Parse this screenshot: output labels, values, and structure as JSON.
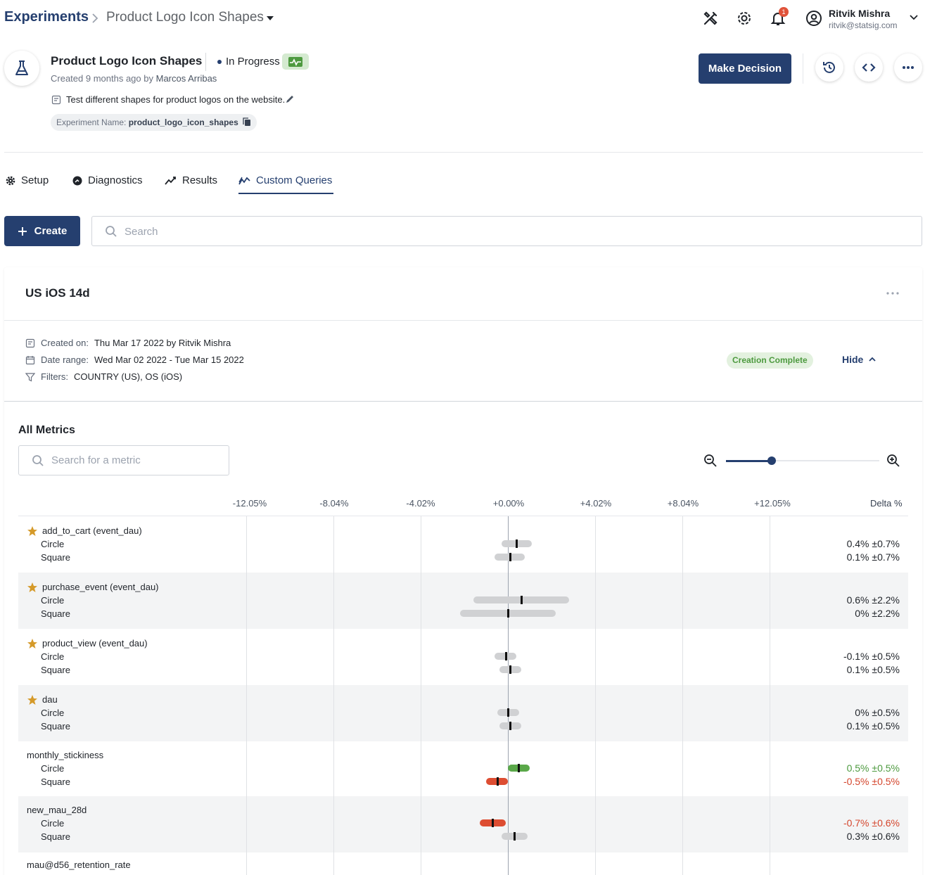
{
  "breadcrumb": {
    "root": "Experiments",
    "current": "Product Logo Icon Shapes"
  },
  "topbar": {
    "icons": [
      "tools-icon",
      "gear-icon",
      "bell-icon"
    ],
    "notification_count": "1",
    "user_name": "Ritvik Mishra",
    "user_email": "ritvik@statsig.com"
  },
  "experiment": {
    "title": "Product Logo Icon Shapes",
    "status": "In Progress",
    "created_prefix": "Created 9 months ago by",
    "created_by": "Marcos Arribas",
    "description": "Test different shapes for product logos on the website.",
    "name_label": "Experiment Name:",
    "name_value": "product_logo_icon_shapes",
    "decision_button": "Make Decision"
  },
  "tabs": [
    {
      "label": "Setup",
      "icon": "gear-icon"
    },
    {
      "label": "Diagnostics",
      "icon": "diagnostics-icon"
    },
    {
      "label": "Results",
      "icon": "chart-line-icon"
    },
    {
      "label": "Custom Queries",
      "icon": "query-chart-icon",
      "active": true
    }
  ],
  "toolbar": {
    "create_label": "Create",
    "search_placeholder": "Search"
  },
  "query": {
    "title": "US iOS 14d",
    "created_on_label": "Created on:",
    "created_on_value": "Thu Mar 17 2022 by Ritvik Mishra",
    "date_range_label": "Date range:",
    "date_range_value": "Wed Mar 02 2022 - Tue Mar 15 2022",
    "filters_label": "Filters:",
    "filters_value": "COUNTRY (US), OS (iOS)",
    "status_chip": "Creation Complete",
    "hide_label": "Hide"
  },
  "metrics_panel": {
    "title": "All Metrics",
    "search_placeholder": "Search for a metric",
    "zoom_level": 0.3,
    "axis_ticks": [
      "-12.05%",
      "-8.04%",
      "-4.02%",
      "+0.00%",
      "+4.02%",
      "+8.04%",
      "+12.05%"
    ],
    "delta_header": "Delta %"
  },
  "colors": {
    "brand": "#253f6f",
    "positive": "#5aa849",
    "negative": "#dd4d32",
    "neutral_ci": "#d0d1d3"
  },
  "metrics": [
    {
      "name": "add_to_cart (event_dau)",
      "starred": true,
      "variants": [
        {
          "label": "Circle",
          "delta": 0.4,
          "ci": 0.7,
          "text": "0.4% ±0.7%",
          "sig": "none"
        },
        {
          "label": "Square",
          "delta": 0.1,
          "ci": 0.7,
          "text": "0.1% ±0.7%",
          "sig": "none"
        }
      ]
    },
    {
      "name": "purchase_event (event_dau)",
      "starred": true,
      "variants": [
        {
          "label": "Circle",
          "delta": 0.6,
          "ci": 2.2,
          "text": "0.6% ±2.2%",
          "sig": "none"
        },
        {
          "label": "Square",
          "delta": 0.0,
          "ci": 2.2,
          "text": "0% ±2.2%",
          "sig": "none"
        }
      ]
    },
    {
      "name": "product_view (event_dau)",
      "starred": true,
      "variants": [
        {
          "label": "Circle",
          "delta": -0.1,
          "ci": 0.5,
          "text": "-0.1% ±0.5%",
          "sig": "none"
        },
        {
          "label": "Square",
          "delta": 0.1,
          "ci": 0.5,
          "text": "0.1% ±0.5%",
          "sig": "none"
        }
      ]
    },
    {
      "name": "dau",
      "starred": true,
      "variants": [
        {
          "label": "Circle",
          "delta": 0.0,
          "ci": 0.5,
          "text": "0% ±0.5%",
          "sig": "none"
        },
        {
          "label": "Square",
          "delta": 0.1,
          "ci": 0.5,
          "text": "0.1% ±0.5%",
          "sig": "none"
        }
      ]
    },
    {
      "name": "monthly_stickiness",
      "starred": false,
      "variants": [
        {
          "label": "Circle",
          "delta": 0.5,
          "ci": 0.5,
          "text": "0.5% ±0.5%",
          "sig": "pos"
        },
        {
          "label": "Square",
          "delta": -0.5,
          "ci": 0.5,
          "text": "-0.5% ±0.5%",
          "sig": "neg"
        }
      ]
    },
    {
      "name": "new_mau_28d",
      "starred": false,
      "variants": [
        {
          "label": "Circle",
          "delta": -0.7,
          "ci": 0.6,
          "text": "-0.7% ±0.6%",
          "sig": "neg"
        },
        {
          "label": "Square",
          "delta": 0.3,
          "ci": 0.6,
          "text": "0.3% ±0.6%",
          "sig": "none"
        }
      ]
    },
    {
      "name": "mau@d56_retention_rate",
      "starred": false,
      "variants": []
    }
  ]
}
